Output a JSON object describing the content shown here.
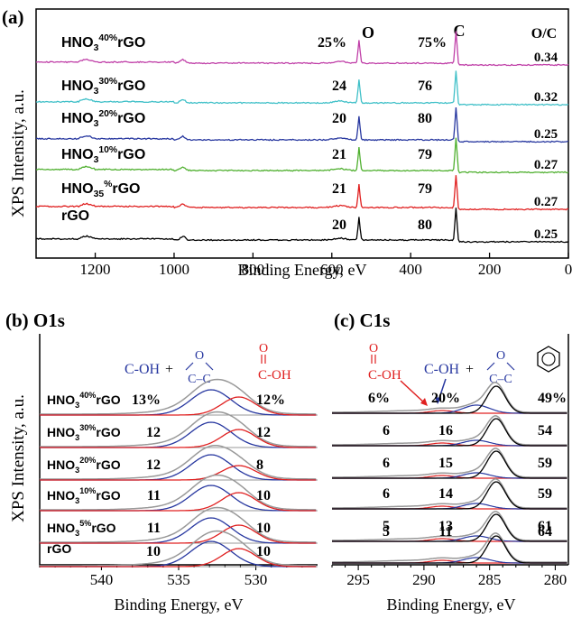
{
  "panel_a": {
    "tag": "(a)",
    "ylabel": "XPS Intensity, a.u.",
    "xlabel": "Binding Energy, eV",
    "xticks": [
      "1200",
      "1000",
      "800",
      "600",
      "400",
      "200",
      "0"
    ],
    "peak_labels": {
      "o": "O",
      "c": "C"
    },
    "ratio_header": "O/C",
    "rows": [
      {
        "label_main": "HNO",
        "label_sub": "3",
        "label_sup": "40%",
        "label_tail": "rGO",
        "o_pct": "25%",
        "c_pct": "75%",
        "ratio": "0.34",
        "color": "#c040a8"
      },
      {
        "label_main": "HNO",
        "label_sub": "3",
        "label_sup": "30%",
        "label_tail": "rGO",
        "o_pct": "24",
        "c_pct": "76",
        "ratio": "0.32",
        "color": "#40c0c8"
      },
      {
        "label_main": "HNO",
        "label_sub": "3",
        "label_sup": "20%",
        "label_tail": "rGO",
        "o_pct": "20",
        "c_pct": "80",
        "ratio": "0.25",
        "color": "#2838a0"
      },
      {
        "label_main": "HNO",
        "label_sub": "3",
        "label_sup": "10%",
        "label_tail": "rGO",
        "o_pct": "21",
        "c_pct": "79",
        "ratio": "0.27",
        "color": "#50b030"
      },
      {
        "label_main": "HNO",
        "label_sub": "35",
        "label_sup": "%",
        "label_tail": "rGO",
        "o_pct": "21",
        "c_pct": "79",
        "ratio": "0.27",
        "color": "#e02020"
      },
      {
        "label_main": "rGO",
        "label_sub": "",
        "label_sup": "",
        "label_tail": "",
        "o_pct": "20",
        "c_pct": "80",
        "ratio": "0.25",
        "color": "#000000"
      }
    ]
  },
  "panel_b": {
    "tag": "(b) O1s",
    "ylabel": "XPS Intensity, a.u.",
    "xlabel": "Binding Energy, eV",
    "xticks": [
      "540",
      "535",
      "530"
    ],
    "annot_coh": "C-OH",
    "annot_plus": "+",
    "annot_epoxy_o": "O",
    "annot_epoxy_cc": "C–C",
    "annot_cooh_o": "O",
    "annot_cooh": "C-OH",
    "rows": [
      {
        "label_main": "HNO",
        "label_sub": "3",
        "label_sup": "40%",
        "label_tail": "rGO",
        "left": "13%",
        "right": "12%"
      },
      {
        "label_main": "HNO",
        "label_sub": "3",
        "label_sup": "30%",
        "label_tail": "rGO",
        "left": "12",
        "right": "12"
      },
      {
        "label_main": "HNO",
        "label_sub": "3",
        "label_sup": "20%",
        "label_tail": "rGO",
        "left": "12",
        "right": "8"
      },
      {
        "label_main": "HNO",
        "label_sub": "3",
        "label_sup": "10%",
        "label_tail": "rGO",
        "left": "11",
        "right": "10"
      },
      {
        "label_main": "HNO",
        "label_sub": "3",
        "label_sup": "5%",
        "label_tail": "rGO",
        "left": "11",
        "right": "10"
      },
      {
        "label_main": "rGO",
        "label_sub": "",
        "label_sup": "",
        "label_tail": "",
        "left": "10",
        "right": "10"
      }
    ]
  },
  "panel_c": {
    "tag": "(c) C1s",
    "xlabel": "Binding Energy, eV",
    "xticks": [
      "295",
      "290",
      "285",
      "280"
    ],
    "annot_cooh_o": "O",
    "annot_cooh": "C-OH",
    "annot_coh": "C-OH",
    "annot_plus": "+",
    "annot_epoxy_o": "O",
    "annot_epoxy_cc": "C–C",
    "rows": [
      {
        "a": "6%",
        "b": "20%",
        "c": "49%"
      },
      {
        "a": "6",
        "b": "16",
        "c": "54"
      },
      {
        "a": "6",
        "b": "15",
        "c": "59"
      },
      {
        "a": "6",
        "b": "14",
        "c": "59"
      },
      {
        "a": "5",
        "b": "13",
        "c": "61"
      },
      {
        "a": "5",
        "b": "11",
        "c": "64"
      }
    ]
  },
  "chart_data": [
    {
      "type": "line",
      "title": "(a)",
      "xlabel": "Binding Energy, eV",
      "ylabel": "XPS Intensity, a.u.",
      "xlim": [
        1350,
        0
      ],
      "peaks_eV": {
        "O": 531,
        "C": 285
      },
      "series": [
        {
          "name": "HNO3 40% rGO",
          "O_pct": 25,
          "C_pct": 75,
          "O_C": 0.34
        },
        {
          "name": "HNO3 30% rGO",
          "O_pct": 24,
          "C_pct": 76,
          "O_C": 0.32
        },
        {
          "name": "HNO3 20% rGO",
          "O_pct": 20,
          "C_pct": 80,
          "O_C": 0.25
        },
        {
          "name": "HNO3 10% rGO",
          "O_pct": 21,
          "C_pct": 79,
          "O_C": 0.27
        },
        {
          "name": "HNO3 5% rGO",
          "O_pct": 21,
          "C_pct": 79,
          "O_C": 0.27
        },
        {
          "name": "rGO",
          "O_pct": 20,
          "C_pct": 80,
          "O_C": 0.25
        }
      ]
    },
    {
      "type": "line",
      "title": "(b) O1s",
      "xlabel": "Binding Energy, eV",
      "ylabel": "XPS Intensity, a.u.",
      "xlim": [
        544,
        526
      ],
      "components_eV": {
        "C-OH + epoxy": 532.8,
        "COOH": 531.0
      },
      "series": [
        {
          "name": "HNO3 40% rGO",
          "C-OH_epoxy": 13,
          "COOH": 12
        },
        {
          "name": "HNO3 30% rGO",
          "C-OH_epoxy": 12,
          "COOH": 12
        },
        {
          "name": "HNO3 20% rGO",
          "C-OH_epoxy": 12,
          "COOH": 8
        },
        {
          "name": "HNO3 10% rGO",
          "C-OH_epoxy": 11,
          "COOH": 10
        },
        {
          "name": "HNO3 5% rGO",
          "C-OH_epoxy": 11,
          "COOH": 10
        },
        {
          "name": "rGO",
          "C-OH_epoxy": 10,
          "COOH": 10
        }
      ]
    },
    {
      "type": "line",
      "title": "(c) C1s",
      "xlabel": "Binding Energy, eV",
      "xlim": [
        297,
        279
      ],
      "components_eV": {
        "COOH": 288.5,
        "C-OH + epoxy": 286.2,
        "C=C": 284.5
      },
      "series": [
        {
          "name": "HNO3 40% rGO",
          "COOH": 6,
          "C-OH_epoxy": 20,
          "CC": 49
        },
        {
          "name": "HNO3 30% rGO",
          "COOH": 6,
          "C-OH_epoxy": 16,
          "CC": 54
        },
        {
          "name": "HNO3 20% rGO",
          "COOH": 6,
          "C-OH_epoxy": 15,
          "CC": 59
        },
        {
          "name": "HNO3 10% rGO",
          "COOH": 6,
          "C-OH_epoxy": 14,
          "CC": 59
        },
        {
          "name": "HNO3 5% rGO",
          "COOH": 5,
          "C-OH_epoxy": 13,
          "CC": 61
        },
        {
          "name": "rGO",
          "COOH": 5,
          "C-OH_epoxy": 11,
          "CC": 64
        }
      ]
    }
  ]
}
